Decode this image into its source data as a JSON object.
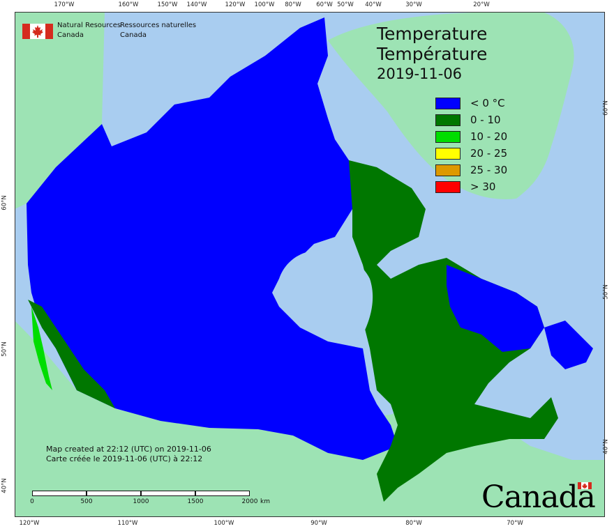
{
  "department": {
    "en": [
      "Natural Resources",
      "Canada"
    ],
    "fr": [
      "Ressources naturelles",
      "Canada"
    ]
  },
  "title": {
    "en": "Temperature",
    "fr": "Température",
    "date": "2019-11-06"
  },
  "legend": [
    {
      "label": "< 0 °C",
      "color": "#0000ff"
    },
    {
      "label": "0 - 10",
      "color": "#007700"
    },
    {
      "label": "10 - 20",
      "color": "#00dd00"
    },
    {
      "label": "20 - 25",
      "color": "#ffff00"
    },
    {
      "label": "25 - 30",
      "color": "#dd9900"
    },
    {
      "label": "> 30",
      "color": "#ff0000"
    }
  ],
  "credit": {
    "en": "Map created at 22:12 (UTC) on 2019-11-06",
    "fr": "Carte créée le 2019-11-06 (UTC) à 22:12"
  },
  "scale": {
    "ticks": [
      "0",
      "500",
      "1000",
      "1500",
      "2000"
    ],
    "unit": "km"
  },
  "wordmark": "Canada",
  "graticule": {
    "top": [
      "170°W",
      "160°W",
      "150°W",
      "140°W",
      "120°W",
      "100°W",
      "80°W",
      "60°W",
      "50°W",
      "40°W",
      "30°W",
      "20°W"
    ],
    "bottom": [
      "120°W",
      "110°W",
      "100°W",
      "90°W",
      "80°W",
      "70°W"
    ],
    "left": [
      "60°N",
      "50°N",
      "40°N"
    ],
    "right": [
      "60°N",
      "50°N",
      "40°N"
    ]
  },
  "colors": {
    "ocean": "#a9cdf0",
    "foreign_land": "#9de3b4",
    "cold": "#0000ff",
    "cool": "#007700",
    "mild": "#00dd00"
  }
}
